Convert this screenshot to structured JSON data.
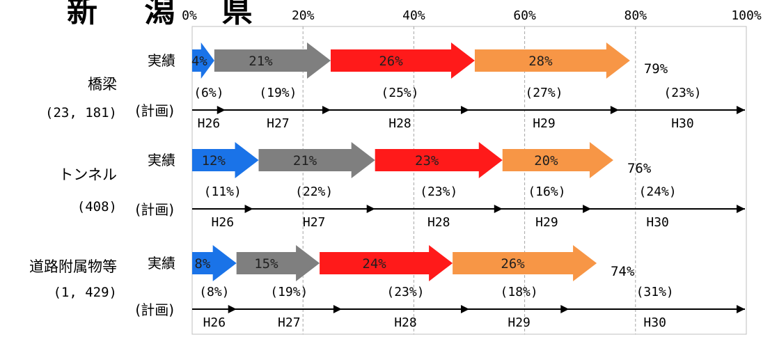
{
  "title": "新 潟 県",
  "chart_data": {
    "type": "bar",
    "title": "新 潟 県",
    "xlim": [
      0,
      100
    ],
    "x_unit": "%",
    "x_ticks": [
      "0%",
      "20%",
      "40%",
      "60%",
      "80%",
      "100%"
    ],
    "grid": true,
    "row_labels": {
      "actual": "実績",
      "plan": "(計画)"
    },
    "groups": [
      {
        "name": "橋梁",
        "count": "(23, 181)",
        "actual": [
          {
            "value": 4,
            "label": "4%",
            "color": "#1a73e8"
          },
          {
            "value": 21,
            "label": "21%",
            "color": "#7f7f7f"
          },
          {
            "value": 26,
            "label": "26%",
            "color": "#ff1a1a"
          },
          {
            "value": 28,
            "label": "28%",
            "color": "#f79646"
          }
        ],
        "actual_total": "79%",
        "plan": [
          {
            "year": "H26",
            "value": 6,
            "label": "(6%)"
          },
          {
            "year": "H27",
            "value": 19,
            "label": "(19%)"
          },
          {
            "year": "H28",
            "value": 25,
            "label": "(25%)"
          },
          {
            "year": "H29",
            "value": 27,
            "label": "(27%)"
          },
          {
            "year": "H30",
            "value": 23,
            "label": "(23%)"
          }
        ]
      },
      {
        "name": "トンネル",
        "count": "(408)",
        "actual": [
          {
            "value": 12,
            "label": "12%",
            "color": "#1a73e8"
          },
          {
            "value": 21,
            "label": "21%",
            "color": "#7f7f7f"
          },
          {
            "value": 23,
            "label": "23%",
            "color": "#ff1a1a"
          },
          {
            "value": 20,
            "label": "20%",
            "color": "#f79646"
          }
        ],
        "actual_total": "76%",
        "plan": [
          {
            "year": "H26",
            "value": 11,
            "label": "(11%)"
          },
          {
            "year": "H27",
            "value": 22,
            "label": "(22%)"
          },
          {
            "year": "H28",
            "value": 23,
            "label": "(23%)"
          },
          {
            "year": "H29",
            "value": 16,
            "label": "(16%)"
          },
          {
            "year": "H30",
            "value": 24,
            "label": "(24%)"
          }
        ]
      },
      {
        "name": "道路附属物等",
        "count": "(1, 429)",
        "actual": [
          {
            "value": 8,
            "label": "8%",
            "color": "#1a73e8"
          },
          {
            "value": 15,
            "label": "15%",
            "color": "#7f7f7f"
          },
          {
            "value": 24,
            "label": "24%",
            "color": "#ff1a1a"
          },
          {
            "value": 26,
            "label": "26%",
            "color": "#f79646"
          }
        ],
        "actual_total": "74%",
        "plan": [
          {
            "year": "H26",
            "value": 8,
            "label": "(8%)"
          },
          {
            "year": "H27",
            "value": 19,
            "label": "(19%)"
          },
          {
            "year": "H28",
            "value": 23,
            "label": "(23%)"
          },
          {
            "year": "H29",
            "value": 18,
            "label": "(18%)"
          },
          {
            "year": "H30",
            "value": 31,
            "label": "(31%)"
          }
        ]
      }
    ]
  }
}
